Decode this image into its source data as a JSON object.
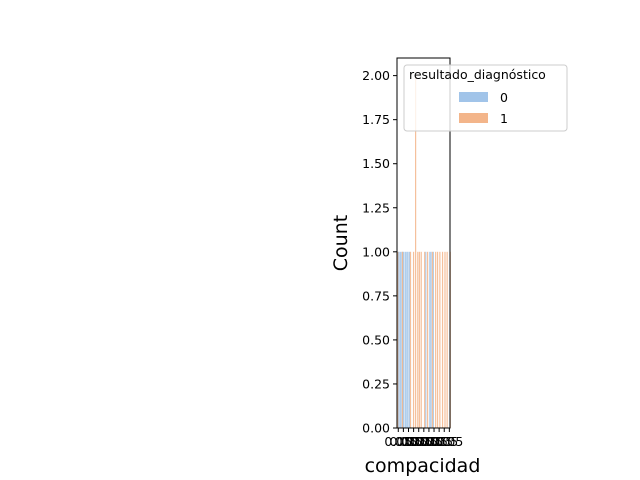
{
  "chart_data": {
    "type": "bar",
    "xlabel": "compacidad",
    "ylabel": "Count",
    "ylim": [
      0,
      2.1
    ],
    "yticks": [
      "0.00",
      "0.25",
      "0.50",
      "0.75",
      "1.00",
      "1.25",
      "1.50",
      "1.75",
      "2.00"
    ],
    "xtick_label": "0.05",
    "legend": {
      "title": "resultado_diagnóstico",
      "placement": "upper right",
      "entries": [
        {
          "label": "0",
          "color": "#a1c4e9"
        },
        {
          "label": "1",
          "color": "#f3b58a"
        }
      ]
    },
    "series": [
      {
        "label": "0",
        "color": "#a1c4e9",
        "bars": [
          {
            "x": 0.0195,
            "count": 1
          },
          {
            "x": 0.0201,
            "count": 1
          },
          {
            "x": 0.0212,
            "count": 1
          },
          {
            "x": 0.0223,
            "count": 1
          },
          {
            "x": 0.0231,
            "count": 1
          },
          {
            "x": 0.0238,
            "count": 1
          },
          {
            "x": 0.0251,
            "count": 1
          },
          {
            "x": 0.0262,
            "count": 1
          },
          {
            "x": 0.0271,
            "count": 1
          },
          {
            "x": 0.0283,
            "count": 1
          },
          {
            "x": 0.0411,
            "count": 1
          },
          {
            "x": 0.0442,
            "count": 1
          },
          {
            "x": 0.0452,
            "count": 1
          },
          {
            "x": 0.047,
            "count": 1
          }
        ]
      },
      {
        "label": "1",
        "color": "#f3b58a",
        "bars": [
          {
            "x": 0.0191,
            "count": 1
          },
          {
            "x": 0.0228,
            "count": 1
          },
          {
            "x": 0.0291,
            "count": 1
          },
          {
            "x": 0.0315,
            "count": 1
          },
          {
            "x": 0.0331,
            "count": 2
          },
          {
            "x": 0.0348,
            "count": 1
          },
          {
            "x": 0.0361,
            "count": 1
          },
          {
            "x": 0.0375,
            "count": 1
          },
          {
            "x": 0.0402,
            "count": 1
          },
          {
            "x": 0.0425,
            "count": 1
          },
          {
            "x": 0.0463,
            "count": 1
          },
          {
            "x": 0.0488,
            "count": 1
          },
          {
            "x": 0.0503,
            "count": 1
          },
          {
            "x": 0.0521,
            "count": 1
          },
          {
            "x": 0.0542,
            "count": 1
          },
          {
            "x": 0.0561,
            "count": 1
          },
          {
            "x": 0.0578,
            "count": 1
          },
          {
            "x": 0.0602,
            "count": 1
          }
        ]
      }
    ]
  }
}
